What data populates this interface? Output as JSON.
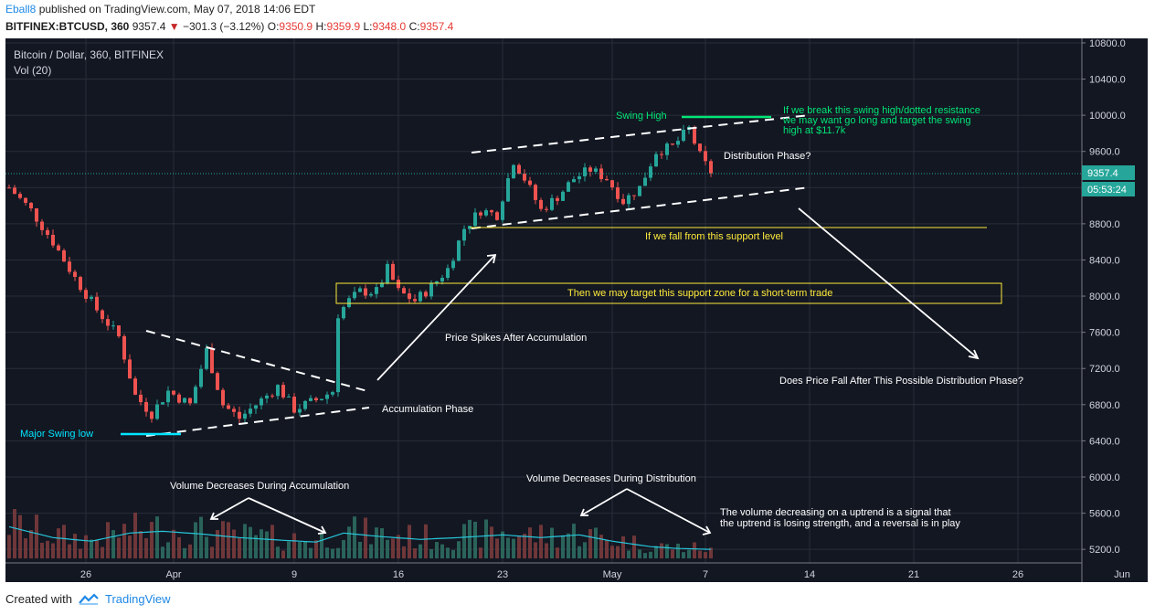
{
  "header": {
    "author": "Eball8",
    "published": "published on TradingView.com, May 07, 2018 14:06 EDT",
    "symbol": "BITFINEX:BTCUSD, 360",
    "last": "9357.4",
    "change": "−301.3 (−3.12%)",
    "o_label": "O:",
    "o_value": "9350.9",
    "h_label": "H:",
    "h_value": "9359.9",
    "l_label": "L:",
    "l_value": "9348.0",
    "c_label": "C:",
    "c_value": "9357.4"
  },
  "legend": {
    "title": "Bitcoin / Dollar, 360, BITFINEX",
    "volume": "Vol (20)"
  },
  "price_badge": "9357.4",
  "countdown_badge": "05:53:24",
  "footer": {
    "created_with": "Created with",
    "brand": "TradingView"
  },
  "annotations": {
    "swing_high": "Swing High",
    "break_note": [
      "If we break this swing high/dotted resistance",
      "we may want go long and target the swing",
      "high at $11.7k"
    ],
    "distribution": "Distribution Phase?",
    "support_level": "If we fall from this support level",
    "support_zone": "Then we may target this support zone for a short-term trade",
    "spikes": "Price Spikes After Accumulation",
    "accumulation": "Accumulation Phase",
    "major_low": "Major Swing low",
    "fall_question": "Does Price Fall After This Possible Distribution Phase?",
    "vol_accum": "Volume Decreases During Accumulation",
    "vol_distrib": "Volume Decreases During Distribution",
    "vol_note": [
      "The volume decreasing on a uptrend is a signal that",
      "the uptrend is losing strength, and a reversal is in play"
    ]
  },
  "colors": {
    "background": "#131722",
    "up": "#26a69a",
    "down": "#ef5350",
    "annot_green": "#00e676",
    "annot_yellow": "#ffeb3b",
    "annot_cyan": "#00e5ff",
    "annot_white": "#ffffff"
  },
  "chart_data": {
    "type": "candlestick",
    "title": "Bitcoin / Dollar, 360, BITFINEX",
    "ylim": [
      5050,
      10850
    ],
    "y_ticks": [
      5200,
      5600,
      6000,
      6400,
      6800,
      7200,
      7600,
      8000,
      8400,
      8800,
      9200,
      9600,
      10000,
      10400,
      10800
    ],
    "x_ticks": [
      "26",
      "Apr",
      "9",
      "16",
      "23",
      "May",
      "7",
      "14",
      "21",
      "26",
      "Jun"
    ],
    "x_tick_index": [
      14,
      30,
      52,
      71,
      90,
      110,
      127,
      146,
      165,
      184,
      203
    ],
    "last_price": 9357.4,
    "anchors": [
      {
        "i": 0,
        "p": 9200
      },
      {
        "i": 4,
        "p": 8950
      },
      {
        "i": 8,
        "p": 8600
      },
      {
        "i": 12,
        "p": 8200
      },
      {
        "i": 16,
        "p": 7850
      },
      {
        "i": 20,
        "p": 7550
      },
      {
        "i": 23,
        "p": 6900
      },
      {
        "i": 26,
        "p": 6700
      },
      {
        "i": 29,
        "p": 6950
      },
      {
        "i": 33,
        "p": 6800
      },
      {
        "i": 36,
        "p": 7400
      },
      {
        "i": 39,
        "p": 6800
      },
      {
        "i": 42,
        "p": 6650
      },
      {
        "i": 45,
        "p": 6800
      },
      {
        "i": 49,
        "p": 7000
      },
      {
        "i": 52,
        "p": 6750
      },
      {
        "i": 56,
        "p": 6850
      },
      {
        "i": 59,
        "p": 6950
      },
      {
        "i": 60,
        "p": 7800
      },
      {
        "i": 62,
        "p": 7950
      },
      {
        "i": 64,
        "p": 8050
      },
      {
        "i": 67,
        "p": 8050
      },
      {
        "i": 69,
        "p": 8300
      },
      {
        "i": 71,
        "p": 8050
      },
      {
        "i": 74,
        "p": 7950
      },
      {
        "i": 77,
        "p": 8100
      },
      {
        "i": 80,
        "p": 8300
      },
      {
        "i": 83,
        "p": 8750
      },
      {
        "i": 86,
        "p": 8950
      },
      {
        "i": 89,
        "p": 8900
      },
      {
        "i": 92,
        "p": 9500
      },
      {
        "i": 94,
        "p": 9300
      },
      {
        "i": 97,
        "p": 8950
      },
      {
        "i": 100,
        "p": 9100
      },
      {
        "i": 103,
        "p": 9300
      },
      {
        "i": 106,
        "p": 9400
      },
      {
        "i": 109,
        "p": 9300
      },
      {
        "i": 112,
        "p": 9050
      },
      {
        "i": 115,
        "p": 9200
      },
      {
        "i": 118,
        "p": 9600
      },
      {
        "i": 121,
        "p": 9650
      },
      {
        "i": 124,
        "p": 9850
      },
      {
        "i": 126,
        "p": 9550
      },
      {
        "i": 128,
        "p": 9357
      }
    ],
    "volume": {
      "ylim": [
        5100,
        6200
      ],
      "bar_base": 5100,
      "ma_anchors": [
        {
          "i": 0,
          "v": 5450
        },
        {
          "i": 8,
          "v": 5330
        },
        {
          "i": 15,
          "v": 5290
        },
        {
          "i": 22,
          "v": 5380
        },
        {
          "i": 28,
          "v": 5400
        },
        {
          "i": 35,
          "v": 5370
        },
        {
          "i": 42,
          "v": 5330
        },
        {
          "i": 50,
          "v": 5300
        },
        {
          "i": 56,
          "v": 5280
        },
        {
          "i": 61,
          "v": 5380
        },
        {
          "i": 68,
          "v": 5340
        },
        {
          "i": 75,
          "v": 5310
        },
        {
          "i": 82,
          "v": 5330
        },
        {
          "i": 90,
          "v": 5360
        },
        {
          "i": 97,
          "v": 5330
        },
        {
          "i": 104,
          "v": 5360
        },
        {
          "i": 110,
          "v": 5290
        },
        {
          "i": 117,
          "v": 5230
        },
        {
          "i": 122,
          "v": 5210
        },
        {
          "i": 128,
          "v": 5200
        }
      ]
    }
  }
}
